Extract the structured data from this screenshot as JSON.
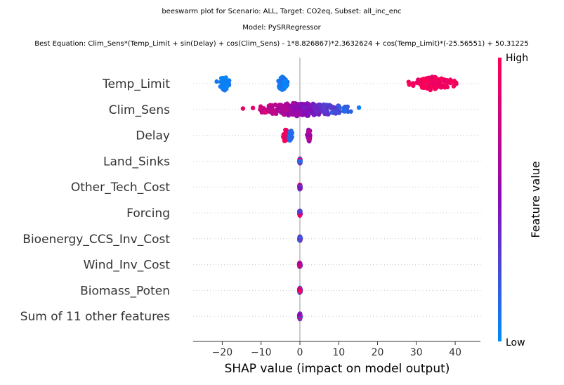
{
  "chart_data": {
    "type": "scatter",
    "subtype": "beeswarm",
    "title_lines": [
      "beeswarm plot for Scenario: ALL, Target: CO2eq, Subset: all_inc_enc",
      "Model: PySRRegressor",
      "Best Equation: Clim_Sens*(Temp_Limit + sin(Delay) + cos(Clim_Sens) - 1*8.826867)*2.3632624 + cos(Temp_Limit)*(-25.56551) + 50.31225"
    ],
    "xlabel": "SHAP value (impact on model output)",
    "xlim": [
      -27.5,
      46.5
    ],
    "xticks": [
      -20,
      -10,
      0,
      10,
      20,
      30,
      40
    ],
    "xtick_labels": [
      "−20",
      "−10",
      "0",
      "10",
      "20",
      "30",
      "40"
    ],
    "grid": "horizontal dotted rows",
    "colorbar": {
      "high_label": "High",
      "low_label": "Low",
      "title": "Feature value",
      "low_color": "#008bfb",
      "mid_color": "#8a0bb5",
      "high_color": "#ff0052"
    },
    "features": [
      {
        "name": "Temp_Limit",
        "clusters": [
          {
            "center": -19.5,
            "spread": 2.5,
            "n": 60,
            "color_low": 0.0,
            "color_high": 0.1
          },
          {
            "center": -4.5,
            "spread": 1.6,
            "n": 80,
            "color_low": 0.0,
            "color_high": 0.15
          },
          {
            "center": 34.5,
            "spread": 7.5,
            "n": 110,
            "color_low": 0.9,
            "color_high": 1.0
          }
        ]
      },
      {
        "name": "Clim_Sens",
        "clusters": [
          {
            "center": 0.5,
            "spread": 17.5,
            "n": 260,
            "color_low": 0.0,
            "color_high": 1.0,
            "color_trend": "descending"
          }
        ]
      },
      {
        "name": "Delay",
        "clusters": [
          {
            "center": -3.8,
            "spread": 1.0,
            "n": 24,
            "color_low": 0.85,
            "color_high": 1.0
          },
          {
            "center": -2.5,
            "spread": 0.6,
            "n": 18,
            "color_low": 0.0,
            "color_high": 0.25
          },
          {
            "center": 2.3,
            "spread": 0.6,
            "n": 30,
            "color_low": 0.5,
            "color_high": 0.7
          }
        ]
      },
      {
        "name": "Land_Sinks",
        "clusters": [
          {
            "center": 0.0,
            "spread": 0.25,
            "n": 40,
            "color_low": 0.0,
            "color_high": 1.0
          }
        ]
      },
      {
        "name": "Other_Tech_Cost",
        "clusters": [
          {
            "center": 0.0,
            "spread": 0.25,
            "n": 40,
            "color_low": 0.0,
            "color_high": 1.0
          }
        ]
      },
      {
        "name": "Forcing",
        "clusters": [
          {
            "center": 0.0,
            "spread": 0.25,
            "n": 40,
            "color_low": 0.0,
            "color_high": 1.0
          }
        ]
      },
      {
        "name": "Bioenergy_CCS_Inv_Cost",
        "clusters": [
          {
            "center": 0.0,
            "spread": 0.25,
            "n": 40,
            "color_low": 0.0,
            "color_high": 1.0
          }
        ]
      },
      {
        "name": "Wind_Inv_Cost",
        "clusters": [
          {
            "center": 0.0,
            "spread": 0.25,
            "n": 40,
            "color_low": 0.0,
            "color_high": 1.0
          }
        ]
      },
      {
        "name": "Biomass_Poten",
        "clusters": [
          {
            "center": 0.0,
            "spread": 0.25,
            "n": 40,
            "color_low": 0.0,
            "color_high": 1.0
          }
        ]
      },
      {
        "name": "Sum of 11 other features",
        "clusters": [
          {
            "center": 0.0,
            "spread": 0.25,
            "n": 40,
            "color_low": 0.0,
            "color_high": 1.0
          }
        ]
      }
    ]
  }
}
